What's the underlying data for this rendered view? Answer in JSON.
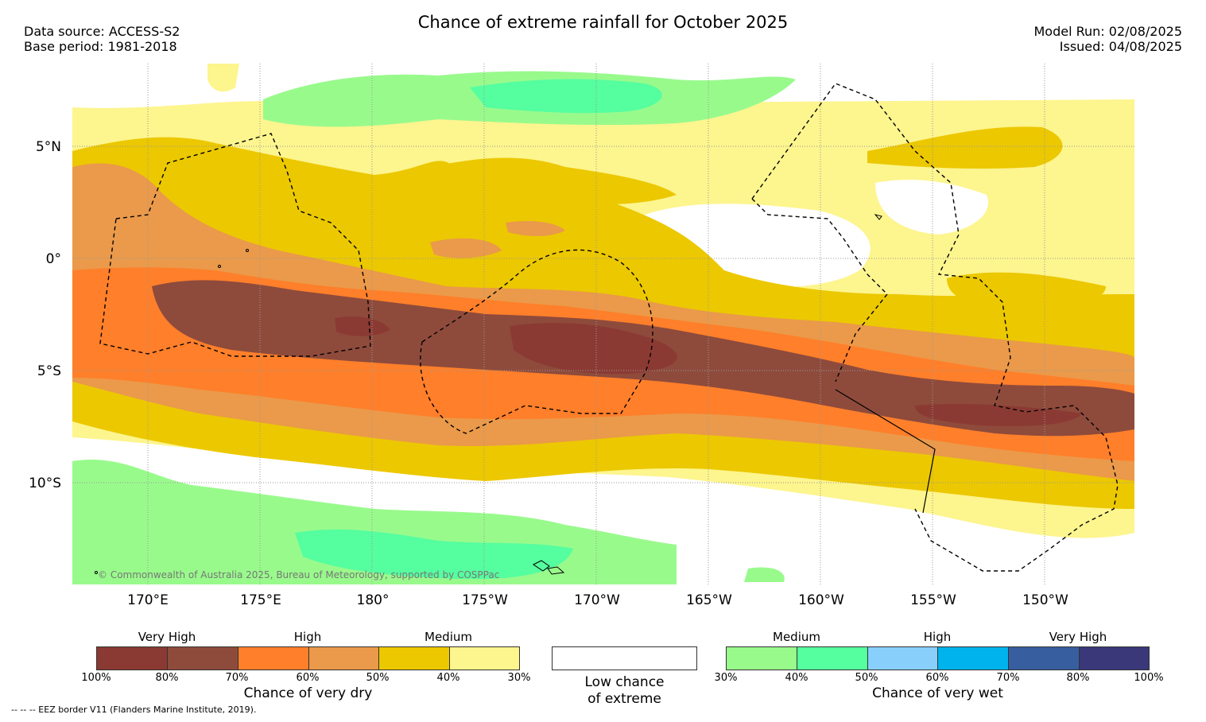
{
  "header": {
    "title": "Chance of extreme rainfall for October 2025",
    "data_source": "Data source: ACCESS-S2",
    "base_period": "Base period: 1981-2018",
    "model_run": "Model Run: 02/08/2025",
    "issued": "Issued: 04/08/2025"
  },
  "axes": {
    "lat_labels": [
      "5°N",
      "0°",
      "5°S",
      "10°S"
    ],
    "lon_labels": [
      "170°E",
      "175°E",
      "180°",
      "175°W",
      "170°W",
      "165°W",
      "160°W",
      "155°W",
      "150°W"
    ]
  },
  "map": {
    "copyright": "© Commonwealth of Australia 2025, Bureau of Meteorology, supported by COSPPac"
  },
  "legend_dry": {
    "categories": [
      "Very High",
      "High",
      "Medium"
    ],
    "ticks": [
      "100%",
      "80%",
      "70%",
      "60%",
      "50%",
      "40%",
      "30%"
    ],
    "colors": [
      "#8b3a33",
      "#8e4b3c",
      "#ff7f2a",
      "#ea9a4a",
      "#ecc800",
      "#fdf58e"
    ],
    "title": "Chance of very dry"
  },
  "legend_low": {
    "line1": "Low chance",
    "line2": "of extreme",
    "color": "#ffffff"
  },
  "legend_wet": {
    "categories": [
      "Medium",
      "High",
      "Very High"
    ],
    "ticks": [
      "30%",
      "40%",
      "50%",
      "60%",
      "70%",
      "80%",
      "100%"
    ],
    "colors": [
      "#99fa8c",
      "#55fe9f",
      "#88cffb",
      "#00b3ec",
      "#375f9f",
      "#3b387a"
    ],
    "title": "Chance of very wet"
  },
  "footer": {
    "eez_note": "--  --  -- EEZ border V11 (Flanders Marine Institute, 2019)."
  }
}
